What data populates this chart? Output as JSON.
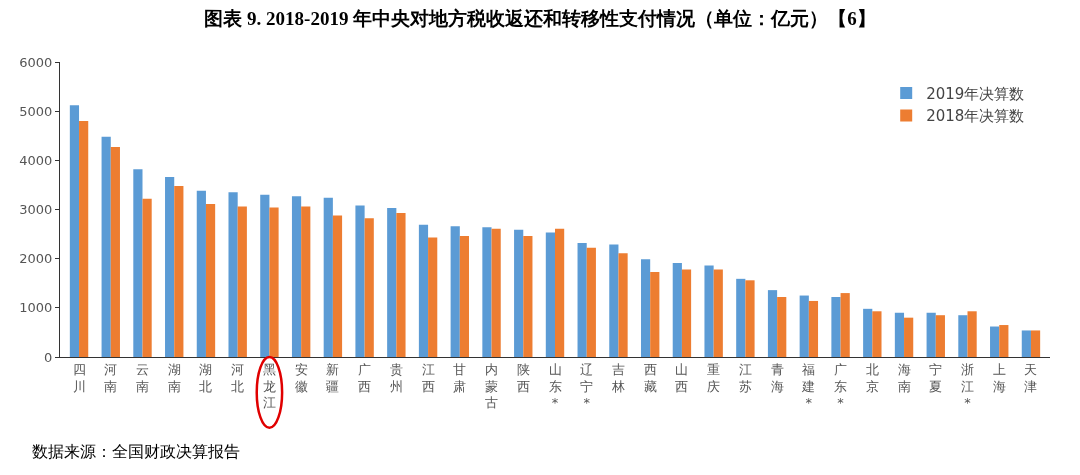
{
  "chart_data": {
    "type": "bar",
    "title": "图表 9. 2018-2019 年中央对地方税收返还和转移性支付情况（单位：亿元）【6】",
    "categories": [
      "四川",
      "河南",
      "云南",
      "湖南",
      "湖北",
      "河北",
      "黑龙江",
      "安徽",
      "新疆",
      "广西",
      "贵州",
      "江西",
      "甘肃",
      "内蒙古",
      "陕西",
      "山东*",
      "辽宁*",
      "吉林",
      "西藏",
      "山西",
      "重庆",
      "江苏",
      "青海",
      "福建*",
      "广东*",
      "北京",
      "海南",
      "宁夏",
      "浙江*",
      "上海",
      "天津"
    ],
    "series": [
      {
        "name": "2019年决算数",
        "color": "#5b9bd5",
        "values": [
          5120,
          4480,
          3820,
          3660,
          3380,
          3350,
          3300,
          3270,
          3240,
          3080,
          3030,
          2690,
          2660,
          2640,
          2590,
          2530,
          2320,
          2290,
          1990,
          1910,
          1860,
          1590,
          1360,
          1250,
          1220,
          980,
          900,
          900,
          850,
          620,
          540
        ]
      },
      {
        "name": "2018年决算数",
        "color": "#ed7d31",
        "values": [
          4800,
          4270,
          3220,
          3480,
          3110,
          3060,
          3040,
          3060,
          2880,
          2820,
          2930,
          2430,
          2460,
          2610,
          2460,
          2610,
          2220,
          2110,
          1730,
          1780,
          1780,
          1560,
          1220,
          1140,
          1300,
          930,
          800,
          850,
          930,
          650,
          540
        ]
      }
    ],
    "ylim": [
      0,
      6000
    ],
    "yticks": [
      0,
      1000,
      2000,
      3000,
      4000,
      5000,
      6000
    ],
    "grid": false,
    "legend": "top right",
    "annotations": [
      "数据来源：全国财政决算报告"
    ]
  }
}
